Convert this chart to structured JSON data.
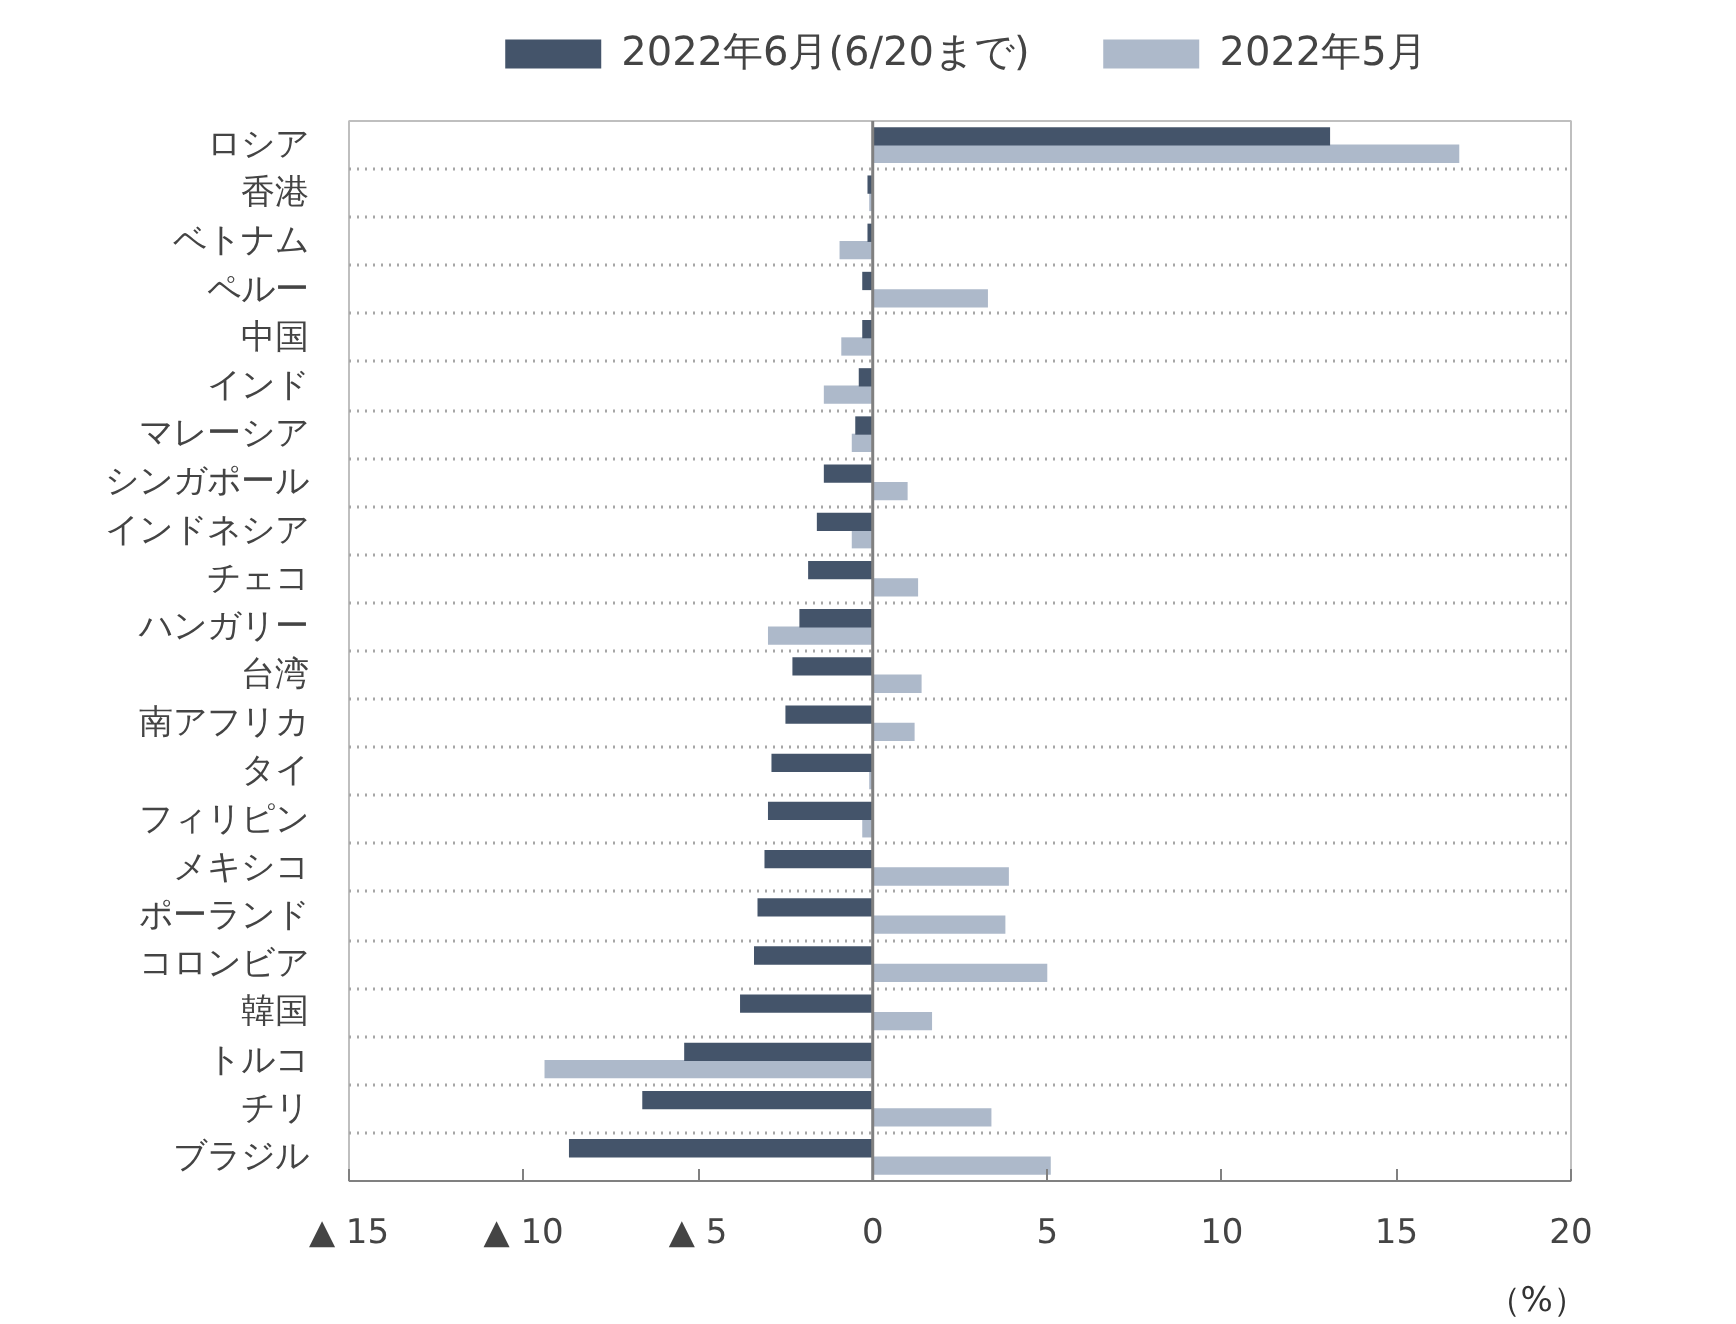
{
  "chart_data": {
    "type": "bar",
    "orientation": "horizontal",
    "categories": [
      "ロシア",
      "香港",
      "ベトナム",
      "ペルー",
      "中国",
      "インド",
      "マレーシア",
      "シンガポール",
      "インドネシア",
      "チェコ",
      "ハンガリー",
      "台湾",
      "南アフリカ",
      "タイ",
      "フィリピン",
      "メキシコ",
      "ポーランド",
      "コロンビア",
      "韓国",
      "トルコ",
      "チリ",
      "ブラジル"
    ],
    "series": [
      {
        "name": "2022年6月(6/20まで)",
        "color": "#44546a",
        "values": [
          13.1,
          -0.15,
          -0.15,
          -0.3,
          -0.3,
          -0.4,
          -0.5,
          -1.4,
          -1.6,
          -1.85,
          -2.1,
          -2.3,
          -2.5,
          -2.9,
          -3.0,
          -3.1,
          -3.3,
          -3.4,
          -3.8,
          -5.4,
          -6.6,
          -8.7
        ]
      },
      {
        "name": "2022年5月",
        "color": "#adb9ca",
        "values": [
          16.8,
          -0.1,
          -0.95,
          3.3,
          -0.9,
          -1.4,
          -0.6,
          1.0,
          -0.6,
          1.3,
          -3.0,
          1.4,
          1.2,
          -0.1,
          -0.3,
          3.9,
          3.8,
          5.0,
          1.7,
          -9.4,
          3.4,
          5.1
        ]
      }
    ],
    "xlim": [
      -15,
      20
    ],
    "xticks": [
      {
        "value": -15,
        "label": "▲ 15"
      },
      {
        "value": -10,
        "label": "▲ 10"
      },
      {
        "value": -5,
        "label": "▲ 5"
      },
      0,
      5,
      10,
      15,
      20
    ],
    "grid": "y",
    "legend": "top",
    "annotations": [
      "（%）"
    ]
  }
}
